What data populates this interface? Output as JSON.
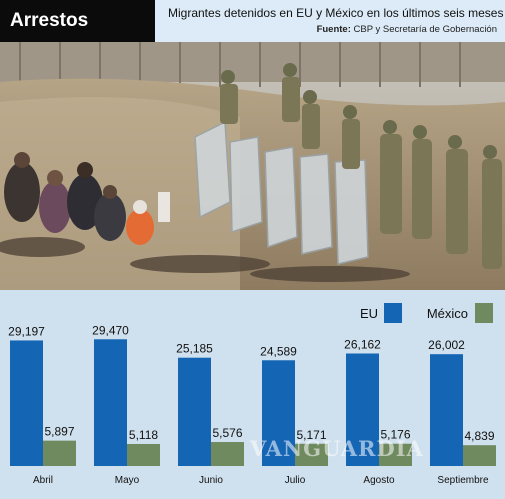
{
  "header": {
    "brand": "Arrestos",
    "subtitle": "Migrantes detenidos en EU y México en los últimos seis meses",
    "source_label": "Fuente:",
    "source_text": "CBP y Secretaría de Gobernación"
  },
  "watermark": "VANGUARDIA",
  "chart_data": {
    "type": "bar",
    "categories": [
      "Abril",
      "Mayo",
      "Junio",
      "Julio",
      "Agosto",
      "Septiembre"
    ],
    "series": [
      {
        "name": "EU",
        "values": [
          29197,
          29470,
          25185,
          24589,
          26162,
          26002
        ],
        "labels": [
          "29,197",
          "29,470",
          "25,185",
          "24,589",
          "26,162",
          "26,002"
        ],
        "color": "#1565b5"
      },
      {
        "name": "México",
        "values": [
          5897,
          5118,
          5576,
          5171,
          5176,
          4839
        ],
        "labels": [
          "5,897",
          "5,118",
          "5,576",
          "5,171",
          "5,176",
          "4,839"
        ],
        "color": "#6f8a5f"
      }
    ],
    "ylim": [
      0,
      30000
    ],
    "grid": false,
    "legend": "top-right",
    "colors": {
      "background": "#cfe0ee",
      "eu": "#1565b5",
      "mexico": "#6f8a5f"
    }
  }
}
